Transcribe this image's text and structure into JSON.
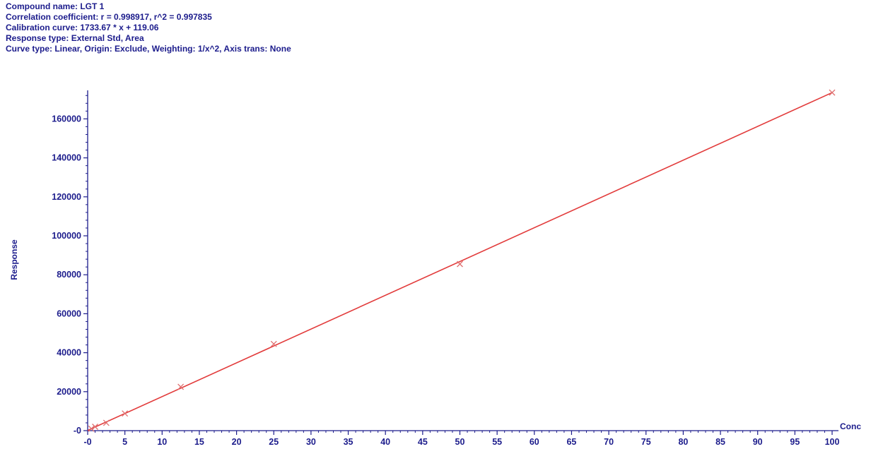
{
  "header": {
    "compound": "Compound name: LGT 1",
    "correlation": "Correlation coefficient: r = 0.998917, r^2 = 0.997835",
    "calibration": "Calibration curve: 1733.67 * x + 119.06",
    "response_type": "Response type: External Std, Area",
    "curve_type": "Curve type: Linear, Origin: Exclude, Weighting: 1/x^2, Axis trans: None"
  },
  "chart_data": {
    "type": "scatter",
    "title": "",
    "xlabel": "Conc",
    "ylabel": "Response",
    "xlim": [
      0,
      100
    ],
    "ylim": [
      0,
      175000
    ],
    "x_ticks": [
      0,
      5,
      10,
      15,
      20,
      25,
      30,
      35,
      40,
      45,
      50,
      55,
      60,
      65,
      70,
      75,
      80,
      85,
      90,
      95,
      100
    ],
    "x_tick_labels": [
      "-0",
      "5",
      "10",
      "15",
      "20",
      "25",
      "30",
      "35",
      "40",
      "45",
      "50",
      "55",
      "60",
      "65",
      "70",
      "75",
      "80",
      "85",
      "90",
      "95",
      "100"
    ],
    "y_ticks": [
      0,
      20000,
      40000,
      60000,
      80000,
      100000,
      120000,
      140000,
      160000
    ],
    "y_tick_labels": [
      "-0",
      "20000",
      "40000",
      "60000",
      "80000",
      "100000",
      "120000",
      "140000",
      "160000"
    ],
    "grid": false,
    "points": [
      {
        "x": 0.5,
        "y": 1000
      },
      {
        "x": 1.0,
        "y": 2000
      },
      {
        "x": 2.5,
        "y": 4000
      },
      {
        "x": 5.0,
        "y": 8800
      },
      {
        "x": 12.5,
        "y": 22500
      },
      {
        "x": 25.0,
        "y": 44500
      },
      {
        "x": 50.0,
        "y": 85500
      },
      {
        "x": 100.0,
        "y": 173500
      }
    ],
    "fit_line": {
      "slope": 1733.67,
      "intercept": 119.06,
      "x_range": [
        0,
        100
      ]
    },
    "colors": {
      "axis": "#1c1c8c",
      "fit_line": "#e23b3b",
      "points": "#e07070"
    }
  }
}
